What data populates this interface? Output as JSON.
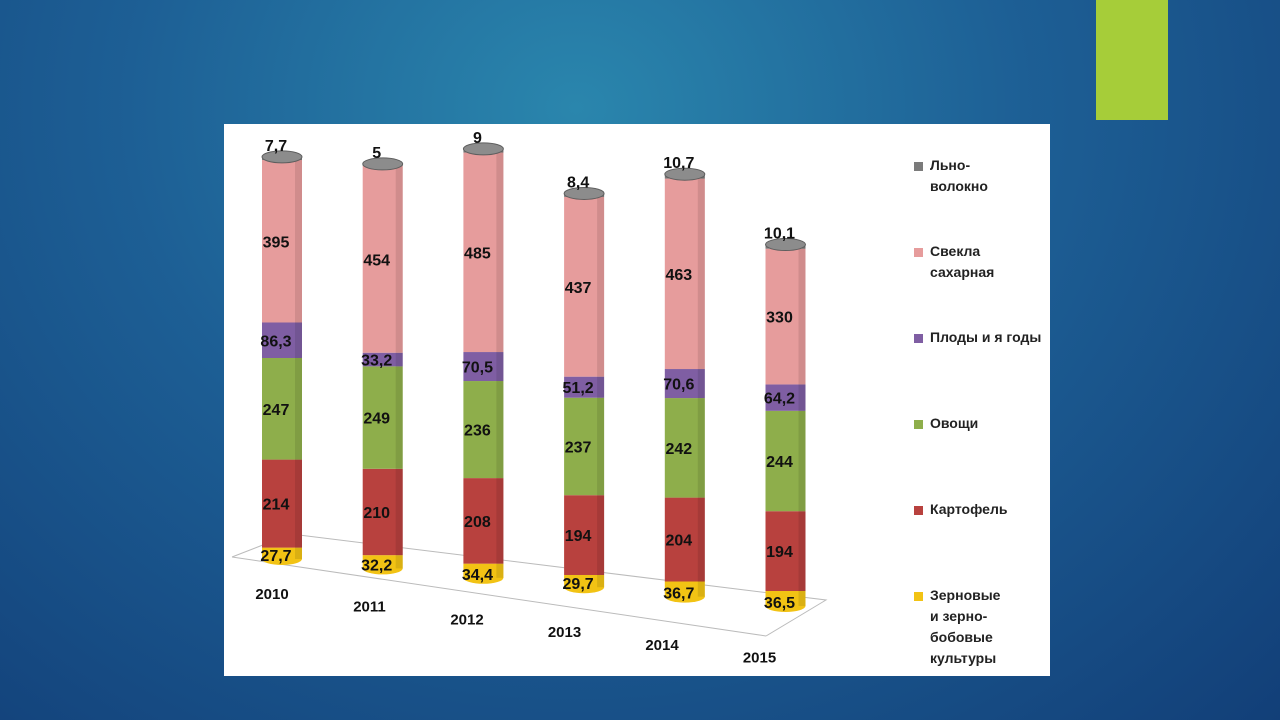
{
  "slide": {
    "accent_color": "#a6cd39"
  },
  "chart_data": {
    "type": "bar",
    "stacked": true,
    "categories": [
      "2010",
      "2011",
      "2012",
      "2013",
      "2014",
      "2015"
    ],
    "series": [
      {
        "name": "Зерновые\nи зерно-\nбобовые\nкультуры",
        "color": "#f2c314",
        "values": [
          27.7,
          32.2,
          34.4,
          29.7,
          36.7,
          36.5
        ],
        "labels": [
          "27,7",
          "32,2",
          "34,4",
          "29,7",
          "36,7",
          "36,5"
        ]
      },
      {
        "name": "Картофель",
        "color": "#b8413e",
        "values": [
          214,
          210,
          208,
          194,
          204,
          194
        ],
        "labels": [
          "214",
          "210",
          "208",
          "194",
          "204",
          "194"
        ]
      },
      {
        "name": "Овощи",
        "color": "#8eae4b",
        "values": [
          247,
          249,
          236,
          237,
          242,
          244
        ],
        "labels": [
          "247",
          "249",
          "236",
          "237",
          "242",
          "244"
        ]
      },
      {
        "name": "Плоды и я годы",
        "color": "#7f5ea3",
        "values": [
          86.3,
          33.2,
          70.5,
          51.2,
          70.6,
          64.2
        ],
        "labels": [
          "86,3",
          "33,2",
          "70,5",
          "51,2",
          "70,6",
          "64,2"
        ]
      },
      {
        "name": "Свекла\nсахарная",
        "color": "#e69c9c",
        "values": [
          395,
          454,
          485,
          437,
          463,
          330
        ],
        "labels": [
          "395",
          "454",
          "485",
          "437",
          "463",
          "330"
        ]
      },
      {
        "name": "Льно-\nволокно",
        "color": "#7b7b7b",
        "values": [
          7.7,
          5,
          9,
          8.4,
          10.7,
          10.1
        ],
        "labels": [
          "7,7",
          "5",
          "9",
          "8,4",
          "10,7",
          "10,1"
        ]
      }
    ],
    "legend_position": "right",
    "grid": false
  }
}
